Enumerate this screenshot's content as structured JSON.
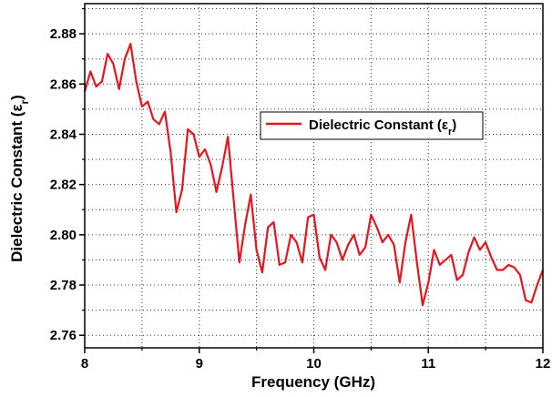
{
  "chart_data": {
    "type": "line",
    "title": "",
    "xlabel": "Frequency (GHz)",
    "ylabel_main": "Dielectric Constant (ε",
    "ylabel_sub": "r",
    "ylabel_close": ")",
    "xlim": [
      8,
      12
    ],
    "ylim": [
      2.755,
      2.892
    ],
    "x_ticks": [
      8,
      9,
      10,
      11,
      12
    ],
    "x_tick_labels": [
      "8",
      "9",
      "10",
      "11",
      "12"
    ],
    "y_ticks": [
      2.76,
      2.78,
      2.8,
      2.82,
      2.84,
      2.86,
      2.88
    ],
    "y_tick_labels": [
      "2.76",
      "2.78",
      "2.80",
      "2.82",
      "2.84",
      "2.86",
      "2.88"
    ],
    "grid": "dotted, at every 0.5 GHz and every 0.01 unit",
    "legend_position": "upper-right",
    "legend_label_main": "Dielectric Constant (ε",
    "legend_label_sub": "r",
    "legend_label_close": ")",
    "line_color": "#e8141e",
    "series": [
      {
        "name": "Dielectric Constant (εr)",
        "x": [
          8.0,
          8.05,
          8.1,
          8.15,
          8.2,
          8.25,
          8.3,
          8.35,
          8.4,
          8.45,
          8.5,
          8.55,
          8.6,
          8.65,
          8.7,
          8.75,
          8.8,
          8.85,
          8.9,
          8.95,
          9.0,
          9.05,
          9.1,
          9.15,
          9.2,
          9.25,
          9.3,
          9.35,
          9.4,
          9.45,
          9.5,
          9.55,
          9.6,
          9.65,
          9.7,
          9.75,
          9.8,
          9.85,
          9.9,
          9.95,
          10.0,
          10.05,
          10.1,
          10.15,
          10.2,
          10.25,
          10.3,
          10.35,
          10.4,
          10.45,
          10.5,
          10.55,
          10.6,
          10.65,
          10.7,
          10.75,
          10.8,
          10.85,
          10.9,
          10.95,
          11.0,
          11.05,
          11.1,
          11.15,
          11.2,
          11.25,
          11.3,
          11.35,
          11.4,
          11.45,
          11.5,
          11.55,
          11.6,
          11.65,
          11.7,
          11.75,
          11.8,
          11.85,
          11.9,
          11.95,
          12.0
        ],
        "y": [
          2.857,
          2.865,
          2.859,
          2.861,
          2.872,
          2.868,
          2.858,
          2.87,
          2.876,
          2.861,
          2.851,
          2.853,
          2.846,
          2.844,
          2.849,
          2.833,
          2.809,
          2.818,
          2.842,
          2.84,
          2.831,
          2.834,
          2.828,
          2.817,
          2.827,
          2.839,
          2.814,
          2.789,
          2.804,
          2.816,
          2.794,
          2.785,
          2.803,
          2.805,
          2.788,
          2.789,
          2.8,
          2.797,
          2.789,
          2.807,
          2.808,
          2.791,
          2.786,
          2.8,
          2.797,
          2.79,
          2.796,
          2.8,
          2.792,
          2.795,
          2.808,
          2.803,
          2.797,
          2.8,
          2.796,
          2.781,
          2.797,
          2.808,
          2.789,
          2.772,
          2.781,
          2.794,
          2.788,
          2.79,
          2.792,
          2.782,
          2.784,
          2.793,
          2.799,
          2.794,
          2.797,
          2.791,
          2.786,
          2.786,
          2.788,
          2.787,
          2.784,
          2.774,
          2.773,
          2.78,
          2.786
        ]
      }
    ]
  }
}
